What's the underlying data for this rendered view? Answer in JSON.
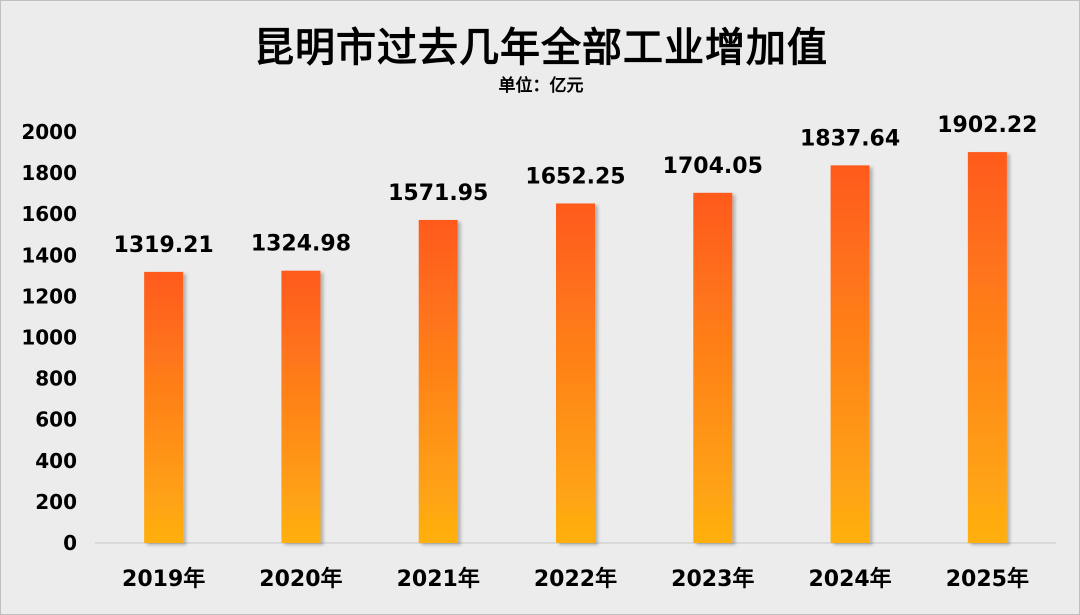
{
  "chart_data": {
    "type": "bar",
    "title": "昆明市过去几年全部工业增加值",
    "subtitle": "单位：亿元",
    "categories": [
      "2019年",
      "2020年",
      "2021年",
      "2022年",
      "2023年",
      "2024年",
      "2025年"
    ],
    "values": [
      1319.21,
      1324.98,
      1571.95,
      1652.25,
      1704.05,
      1837.64,
      1902.22
    ],
    "value_labels": [
      "1319.21",
      "1324.98",
      "1571.95",
      "1652.25",
      "1704.05",
      "1837.64",
      "1902.22"
    ],
    "xlabel": "",
    "ylabel": "",
    "ylim": [
      0,
      2000
    ],
    "yticks": [
      0,
      200,
      400,
      600,
      800,
      1000,
      1200,
      1400,
      1600,
      1800,
      2000
    ],
    "grid": false,
    "legend": "none",
    "colors": {
      "bar_top": "#ff5a1f",
      "bar_bottom": "#ffb010",
      "axis": "#d9d9d9",
      "background": "#ececec"
    }
  }
}
